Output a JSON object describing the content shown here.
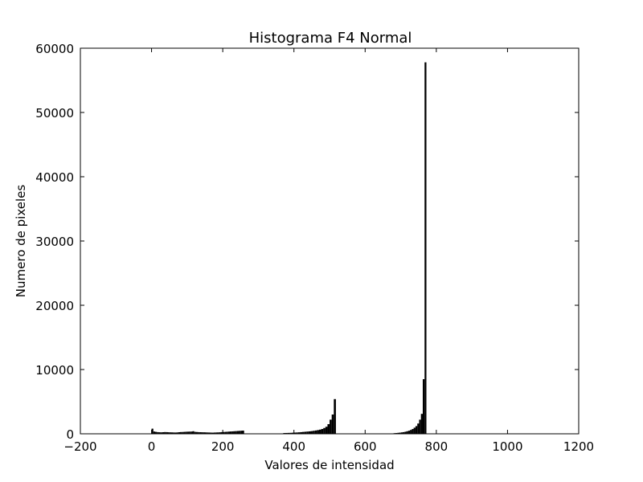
{
  "chart_data": {
    "type": "bar",
    "title": "Histograma F4 Normal",
    "xlabel": "Valores de intensidad",
    "ylabel": "Numero de pixeles",
    "xlim": [
      -200,
      1200
    ],
    "ylim": [
      0,
      60000
    ],
    "xticks": [
      -200,
      0,
      200,
      400,
      600,
      800,
      1000,
      1200
    ],
    "yticks": [
      0,
      10000,
      20000,
      30000,
      40000,
      50000,
      60000
    ],
    "xtick_labels": [
      "−200",
      "0",
      "200",
      "400",
      "600",
      "800",
      "1000",
      "1200"
    ],
    "ytick_labels": [
      "0",
      "10000",
      "20000",
      "30000",
      "40000",
      "50000",
      "60000"
    ],
    "grid": false,
    "bar_color": "#000000",
    "segments": [
      {
        "start": 0,
        "end": 255,
        "values": [
          800,
          350,
          300,
          260,
          240,
          230,
          250,
          270,
          260,
          240,
          230,
          220,
          210,
          200,
          220,
          250,
          270,
          280,
          300,
          320,
          330,
          340,
          350,
          400,
          300,
          280,
          260,
          250,
          240,
          230,
          220,
          210,
          200,
          190,
          180,
          200,
          210,
          220,
          240,
          260,
          280,
          300,
          320,
          340,
          360,
          380,
          400,
          420,
          440,
          460,
          480,
          500
        ]
      },
      {
        "start": 370,
        "end": 512,
        "values": [
          120,
          130,
          140,
          150,
          170,
          190,
          210,
          230,
          260,
          290,
          320,
          350,
          380,
          420,
          470,
          520,
          580,
          650,
          750,
          900,
          1100,
          1500,
          2200,
          3000,
          5400
        ]
      },
      {
        "start": 680,
        "end": 767,
        "values": [
          100,
          120,
          150,
          180,
          220,
          260,
          320,
          400,
          480,
          600,
          750,
          950,
          1200,
          1600,
          2200,
          3100,
          8500,
          57800
        ]
      }
    ]
  }
}
